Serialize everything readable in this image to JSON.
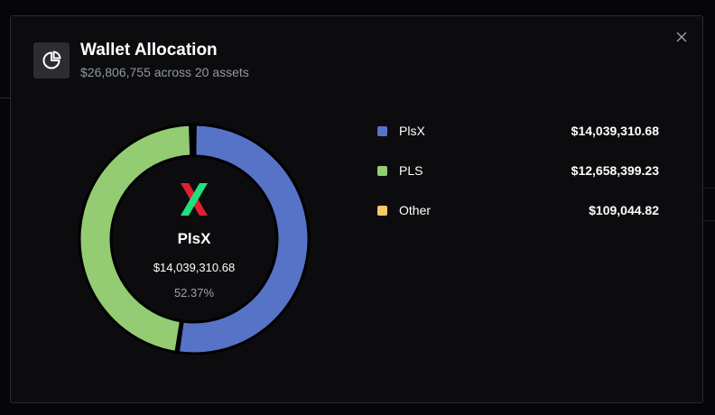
{
  "modal": {
    "title": "Wallet Allocation",
    "subtitle": "$26,806,755 across 20 assets",
    "icon": "pie-chart-icon",
    "close_icon": "close-icon"
  },
  "center": {
    "name": "PlsX",
    "value": "$14,039,310.68",
    "percent": "52.37%",
    "logo": "plsx-logo"
  },
  "chart_data": {
    "type": "pie",
    "categories": [
      "PlsX",
      "PLS",
      "Other"
    ],
    "values": [
      14039310.68,
      12658399.23,
      109044.82
    ],
    "colors": [
      "#5773c8",
      "#94cc74",
      "#f6c967"
    ],
    "title": "Wallet Allocation",
    "donut": true,
    "legend": "right"
  },
  "legend": {
    "items": [
      {
        "label": "PlsX",
        "value": "$14,039,310.68",
        "color": "#5773c8"
      },
      {
        "label": "PLS",
        "value": "$12,658,399.23",
        "color": "#94cc74"
      },
      {
        "label": "Other",
        "value": "$109,044.82",
        "color": "#f6c967"
      }
    ]
  }
}
